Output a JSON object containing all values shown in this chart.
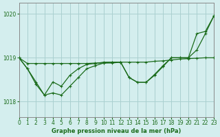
{
  "title": "Graphe pression niveau de la mer (hPa)",
  "bg_color": "#d4eeee",
  "grid_color": "#aad0d0",
  "line_color": "#1a6b1a",
  "xlim": [
    0,
    23
  ],
  "ylim": [
    1017.65,
    1020.25
  ],
  "yticks": [
    1018,
    1019,
    1020
  ],
  "xticks": [
    0,
    1,
    2,
    3,
    4,
    5,
    6,
    7,
    8,
    9,
    10,
    11,
    12,
    13,
    14,
    15,
    16,
    17,
    18,
    19,
    20,
    21,
    22,
    23
  ],
  "series1_x": [
    0,
    1,
    2,
    3,
    4,
    5,
    6,
    7,
    8,
    9,
    10,
    11,
    12,
    13,
    14,
    15,
    16,
    17,
    18,
    19,
    20,
    21,
    22,
    23
  ],
  "series1_y": [
    1019.0,
    1018.87,
    1018.87,
    1018.87,
    1018.87,
    1018.87,
    1018.87,
    1018.87,
    1018.87,
    1018.88,
    1018.88,
    1018.88,
    1018.9,
    1018.9,
    1018.9,
    1018.9,
    1018.92,
    1018.93,
    1018.95,
    1018.97,
    1018.98,
    1018.99,
    1019.0,
    1019.0
  ],
  "series2_x": [
    0,
    1,
    2,
    3,
    4,
    5,
    6,
    7,
    8,
    9,
    10,
    11,
    12,
    13,
    14,
    15,
    16,
    17,
    18,
    19,
    20,
    21,
    22,
    23
  ],
  "series2_y": [
    1019.0,
    1018.75,
    1018.45,
    1018.15,
    1018.2,
    1018.15,
    1018.35,
    1018.55,
    1018.75,
    1018.82,
    1018.88,
    1018.9,
    1018.9,
    1018.55,
    1018.44,
    1018.44,
    1018.62,
    1018.82,
    1019.0,
    1019.0,
    1019.0,
    1019.55,
    1019.6,
    1019.95
  ],
  "series3_x": [
    0,
    1,
    2,
    3,
    4,
    5,
    6,
    7,
    8,
    9,
    10,
    11,
    12,
    13,
    14,
    15,
    16,
    17,
    18,
    19,
    20,
    21,
    22,
    23
  ],
  "series3_y": [
    1019.0,
    1018.75,
    1018.4,
    1018.15,
    1018.45,
    1018.35,
    1018.6,
    1018.75,
    1018.85,
    1018.87,
    1018.9,
    1018.9,
    1018.9,
    1018.55,
    1018.44,
    1018.44,
    1018.6,
    1018.8,
    1019.0,
    1019.0,
    1019.0,
    1019.18,
    1019.55,
    1019.95
  ],
  "lw1": 0.9,
  "lw2": 0.9,
  "lw3": 0.9,
  "ms": 2.5,
  "tick_fontsize": 5.5,
  "label_fontsize": 6.0
}
